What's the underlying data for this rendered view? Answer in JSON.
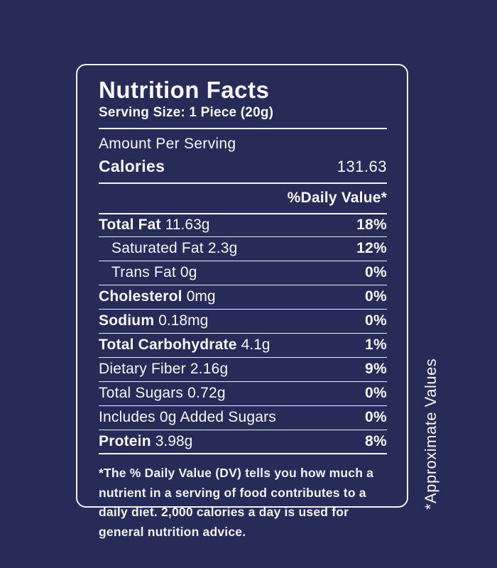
{
  "colors": {
    "background": "#262b57",
    "text": "#f8f8fa",
    "border": "#f4f4f6"
  },
  "label": {
    "title": "Nutrition Facts",
    "serving_size": "Serving Size: 1 Piece (20g)",
    "amount_per_serving": "Amount Per Serving",
    "calories_label": "Calories",
    "calories_value": "131.63",
    "daily_value_header": "%Daily Value*",
    "rows": [
      {
        "name": "Total Fat",
        "amount": "11.63g",
        "percent": "18%"
      },
      {
        "name": "Saturated Fat 2.3g",
        "amount": "",
        "percent": "12%"
      },
      {
        "name": "Trans Fat 0g",
        "amount": "",
        "percent": "0%"
      },
      {
        "name": "Cholesterol",
        "amount": "0mg",
        "percent": "0%"
      },
      {
        "name": "Sodium",
        "amount": "0.18mg",
        "percent": "0%"
      },
      {
        "name": "Total Carbohydrate",
        "amount": "4.1g",
        "percent": "1%"
      },
      {
        "name": "Dietary Fiber 2.16g",
        "amount": "",
        "percent": "9%"
      },
      {
        "name": "Total Sugars 0.72g",
        "amount": "",
        "percent": "0%"
      },
      {
        "name": "Includes 0g Added Sugars",
        "amount": "",
        "percent": "0%"
      },
      {
        "name": "Protein",
        "amount": "3.98g",
        "percent": "8%"
      }
    ],
    "footnote": "*The % Daily Value (DV) tells you how much a nutrient in a serving of food contributes to a daily diet. 2,000 calories a day is used for general nutrition advice."
  },
  "side_note": "*Approximate Values"
}
